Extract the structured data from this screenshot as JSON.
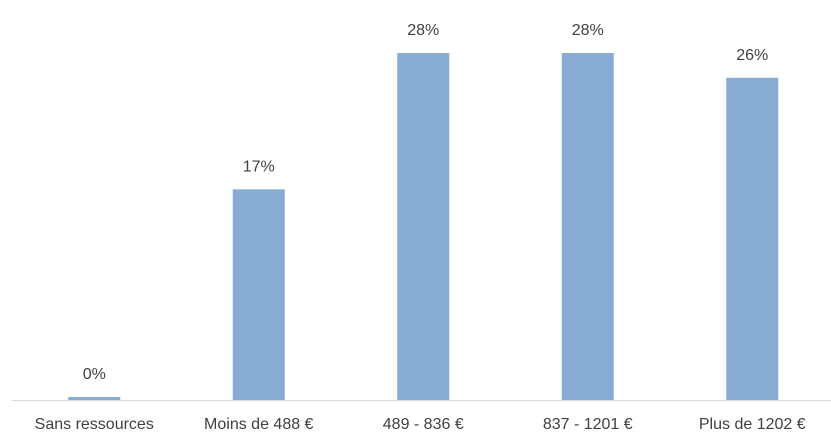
{
  "chart_data": {
    "type": "bar",
    "categories": [
      "Sans ressources",
      "Moins de 488 €",
      "489 - 836 €",
      "837 - 1201 €",
      "Plus de 1202 €"
    ],
    "values": [
      0,
      17,
      28,
      28,
      26
    ],
    "value_labels": [
      "0%",
      "17%",
      "28%",
      "28%",
      "26%"
    ],
    "color": "#88abd4"
  }
}
